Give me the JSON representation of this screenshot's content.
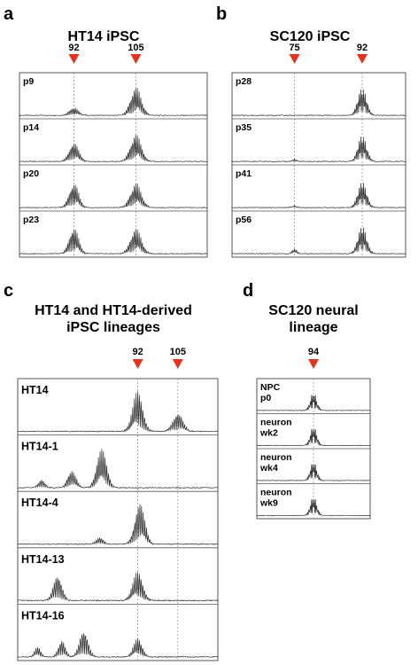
{
  "panels": [
    {
      "id": "a",
      "letter": "a",
      "title_lines": [
        "HT14 iPSC"
      ],
      "markers": [
        {
          "label": "92",
          "pos": 0.29
        },
        {
          "label": "105",
          "pos": 0.62
        }
      ],
      "tracks": [
        {
          "label_lines": [
            "p9"
          ],
          "peaks": [
            {
              "pos": 0.29,
              "h": 0.22,
              "w": 0.035
            },
            {
              "pos": 0.62,
              "h": 0.8,
              "w": 0.04
            }
          ]
        },
        {
          "label_lines": [
            "p14"
          ],
          "peaks": [
            {
              "pos": 0.29,
              "h": 0.55,
              "w": 0.035
            },
            {
              "pos": 0.62,
              "h": 0.78,
              "w": 0.04
            }
          ]
        },
        {
          "label_lines": [
            "p20"
          ],
          "peaks": [
            {
              "pos": 0.29,
              "h": 0.7,
              "w": 0.035
            },
            {
              "pos": 0.62,
              "h": 0.7,
              "w": 0.04
            }
          ]
        },
        {
          "label_lines": [
            "p23"
          ],
          "peaks": [
            {
              "pos": 0.29,
              "h": 0.75,
              "w": 0.035
            },
            {
              "pos": 0.62,
              "h": 0.72,
              "w": 0.04
            }
          ]
        }
      ]
    },
    {
      "id": "b",
      "letter": "b",
      "title_lines": [
        "SC120 iPSC"
      ],
      "markers": [
        {
          "label": "75",
          "pos": 0.36
        },
        {
          "label": "92",
          "pos": 0.75
        }
      ],
      "tracks": [
        {
          "label_lines": [
            "p28"
          ],
          "peaks": [
            {
              "pos": 0.75,
              "h": 0.8,
              "w": 0.035
            }
          ]
        },
        {
          "label_lines": [
            "p35"
          ],
          "peaks": [
            {
              "pos": 0.36,
              "h": 0.06,
              "w": 0.02
            },
            {
              "pos": 0.75,
              "h": 0.75,
              "w": 0.035
            }
          ]
        },
        {
          "label_lines": [
            "p41"
          ],
          "peaks": [
            {
              "pos": 0.36,
              "h": 0.06,
              "w": 0.02
            },
            {
              "pos": 0.75,
              "h": 0.75,
              "w": 0.035
            }
          ]
        },
        {
          "label_lines": [
            "p56"
          ],
          "peaks": [
            {
              "pos": 0.36,
              "h": 0.14,
              "w": 0.02
            },
            {
              "pos": 0.75,
              "h": 0.8,
              "w": 0.035
            }
          ]
        }
      ]
    },
    {
      "id": "c",
      "letter": "c",
      "title_lines": [
        "HT14 and HT14-derived",
        "iPSC lineages"
      ],
      "markers": [
        {
          "label": "92",
          "pos": 0.6
        },
        {
          "label": "105",
          "pos": 0.8
        }
      ],
      "tracks": [
        {
          "label_lines": [
            "HT14"
          ],
          "peaks": [
            {
              "pos": 0.6,
              "h": 0.9,
              "w": 0.035
            },
            {
              "pos": 0.8,
              "h": 0.42,
              "w": 0.035
            }
          ]
        },
        {
          "label_lines": [
            "HT14-1"
          ],
          "peaks": [
            {
              "pos": 0.12,
              "h": 0.18,
              "w": 0.025
            },
            {
              "pos": 0.27,
              "h": 0.38,
              "w": 0.03
            },
            {
              "pos": 0.42,
              "h": 0.85,
              "w": 0.035
            }
          ]
        },
        {
          "label_lines": [
            "HT14-4"
          ],
          "peaks": [
            {
              "pos": 0.41,
              "h": 0.16,
              "w": 0.025
            },
            {
              "pos": 0.61,
              "h": 0.9,
              "w": 0.035
            }
          ]
        },
        {
          "label_lines": [
            "HT14-13"
          ],
          "peaks": [
            {
              "pos": 0.2,
              "h": 0.58,
              "w": 0.03
            },
            {
              "pos": 0.6,
              "h": 0.65,
              "w": 0.035
            }
          ]
        },
        {
          "label_lines": [
            "HT14-16"
          ],
          "peaks": [
            {
              "pos": 0.1,
              "h": 0.22,
              "w": 0.022
            },
            {
              "pos": 0.22,
              "h": 0.38,
              "w": 0.025
            },
            {
              "pos": 0.33,
              "h": 0.62,
              "w": 0.03
            },
            {
              "pos": 0.6,
              "h": 0.42,
              "w": 0.03
            }
          ]
        }
      ]
    },
    {
      "id": "d",
      "letter": "d",
      "title_lines": [
        "SC120 neural",
        "lineage"
      ],
      "markers": [
        {
          "label": "94",
          "pos": 0.5
        }
      ],
      "tracks": [
        {
          "label_lines": [
            "NPC",
            "p0"
          ],
          "peaks": [
            {
              "pos": 0.5,
              "h": 0.75,
              "w": 0.04
            }
          ]
        },
        {
          "label_lines": [
            "neuron",
            "wk2"
          ],
          "peaks": [
            {
              "pos": 0.5,
              "h": 0.8,
              "w": 0.04
            }
          ]
        },
        {
          "label_lines": [
            "neuron",
            "wk4"
          ],
          "peaks": [
            {
              "pos": 0.5,
              "h": 0.8,
              "w": 0.04
            }
          ]
        },
        {
          "label_lines": [
            "neuron",
            "wk9"
          ],
          "peaks": [
            {
              "pos": 0.5,
              "h": 0.8,
              "w": 0.04
            }
          ]
        }
      ]
    }
  ],
  "colors": {
    "marker": "#e8311a",
    "trace": "#333333",
    "frame": "#555555",
    "guide": "#999999"
  }
}
